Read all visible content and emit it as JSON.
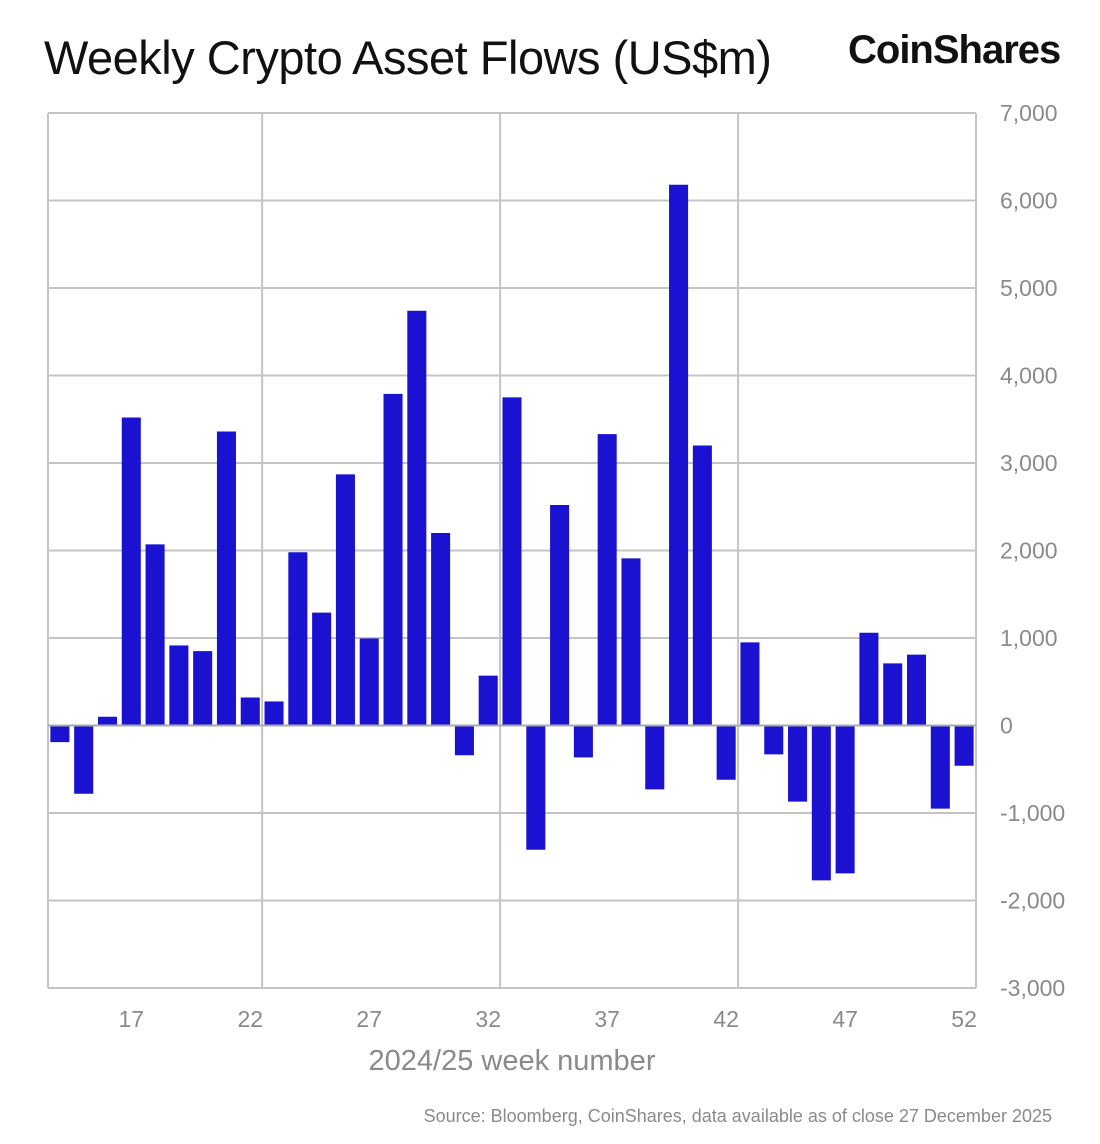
{
  "logo": "CoinShares",
  "source": "Source: Bloomberg, CoinShares, data available as of close 27 December 2025",
  "chart_data": {
    "type": "bar",
    "title": "Weekly Crypto Asset Flows (US$m)",
    "xlabel": "2024/25 week number",
    "ylabel": "",
    "ylim": [
      -3000,
      7000
    ],
    "xlim": [
      13.5,
      52.5
    ],
    "grid": true,
    "bar_color": "#1a12d0",
    "y_ticks": [
      -3000,
      -2000,
      -1000,
      0,
      1000,
      2000,
      3000,
      4000,
      5000,
      6000,
      7000
    ],
    "y_tick_labels": [
      "-3,000",
      "-2,000",
      "-1,000",
      "0",
      "1,000",
      "2,000",
      "3,000",
      "4,000",
      "5,000",
      "6,000",
      "7,000"
    ],
    "x_ticks": [
      17,
      22,
      27,
      32,
      37,
      42,
      47,
      52
    ],
    "x_tick_labels": [
      "17",
      "22",
      "27",
      "32",
      "37",
      "42",
      "47",
      "52"
    ],
    "categories": [
      14,
      15,
      16,
      17,
      18,
      19,
      20,
      21,
      22,
      23,
      24,
      25,
      26,
      27,
      28,
      29,
      30,
      31,
      32,
      33,
      34,
      35,
      36,
      37,
      38,
      39,
      40,
      41,
      42,
      43,
      44,
      45,
      46,
      47,
      48,
      49,
      50,
      51,
      52
    ],
    "values": [
      -190,
      -780,
      100,
      3520,
      2070,
      915,
      850,
      3360,
      320,
      275,
      1980,
      1290,
      2870,
      995,
      3790,
      4740,
      2200,
      -340,
      570,
      3750,
      -1420,
      2520,
      -365,
      3330,
      1910,
      -730,
      6180,
      3200,
      -620,
      950,
      -330,
      -870,
      -1770,
      -1690,
      1060,
      710,
      810,
      -950,
      -460
    ]
  }
}
